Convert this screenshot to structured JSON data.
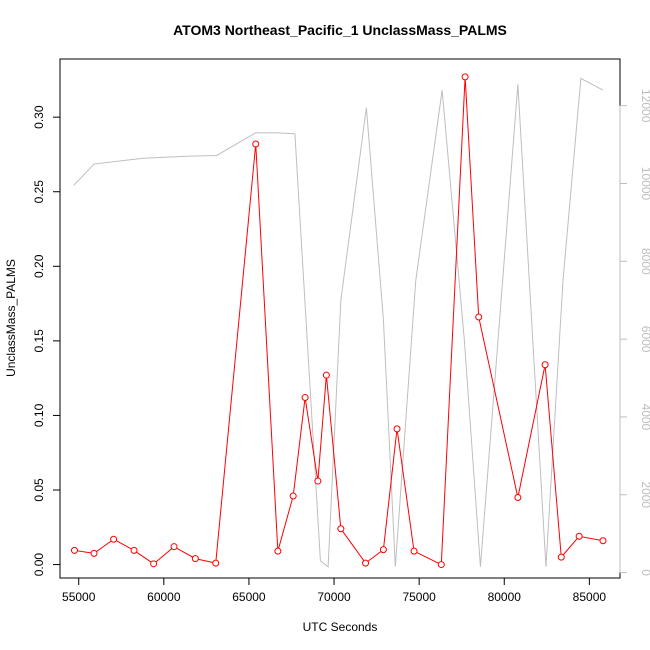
{
  "chart_data": {
    "type": "line",
    "title": "ATOM3 Northeast_Pacific_1 UnclassMass_PALMS",
    "xlabel": "UTC Seconds",
    "ylabel": "UnclassMass_PALMS",
    "xlim": [
      53900,
      86800
    ],
    "ylim": [
      -0.009,
      0.339
    ],
    "y2lim": [
      -140,
      13200
    ],
    "x_ticks": [
      55000,
      60000,
      65000,
      70000,
      75000,
      80000,
      85000
    ],
    "x_tick_labels": [
      "55000",
      "60000",
      "65000",
      "70000",
      "75000",
      "80000",
      "85000"
    ],
    "y_ticks": [
      0.0,
      0.05,
      0.1,
      0.15,
      0.2,
      0.25,
      0.3
    ],
    "y_tick_labels": [
      "0.00",
      "0.05",
      "0.10",
      "0.15",
      "0.20",
      "0.25",
      "0.30"
    ],
    "y2_ticks": [
      0,
      2000,
      4000,
      6000,
      8000,
      10000,
      12000
    ],
    "y2_tick_labels": [
      "0",
      "2000",
      "4000",
      "6000",
      "8000",
      "10000",
      "12000"
    ],
    "grid": false,
    "legend": "none",
    "colors": {
      "primary": "#ff0000",
      "secondary": "#bebebe"
    },
    "series": [
      {
        "axis": "left",
        "color": "#ff0000",
        "marker": "open-circle",
        "x": [
          54750,
          55900,
          57050,
          58250,
          59400,
          60600,
          61850,
          63050,
          65400,
          66700,
          67600,
          68300,
          69050,
          69550,
          70400,
          71850,
          72900,
          73700,
          74700,
          76300,
          77700,
          78500,
          80800,
          82400,
          83350,
          84400,
          85800
        ],
        "y": [
          0.0095,
          0.0075,
          0.017,
          0.0095,
          0.0005,
          0.012,
          0.004,
          0.001,
          0.282,
          0.009,
          0.046,
          0.112,
          0.056,
          0.127,
          0.024,
          0.001,
          0.01,
          0.091,
          0.009,
          0.0,
          0.327,
          0.166,
          0.045,
          0.134,
          0.005,
          0.019,
          0.016
        ]
      },
      {
        "axis": "right",
        "color": "#bebebe",
        "marker": "none",
        "x": [
          54700,
          55900,
          58800,
          61300,
          63100,
          65400,
          66700,
          67700,
          69200,
          69650,
          70400,
          71900,
          72900,
          73600,
          74800,
          76350,
          77650,
          78600,
          80800,
          82450,
          83450,
          84500,
          85800
        ],
        "y": [
          9950,
          10500,
          10650,
          10700,
          10720,
          11300,
          11300,
          11280,
          300,
          150,
          7000,
          11950,
          6500,
          150,
          7500,
          12400,
          6000,
          150,
          12550,
          150,
          7500,
          12700,
          12400
        ]
      }
    ]
  }
}
